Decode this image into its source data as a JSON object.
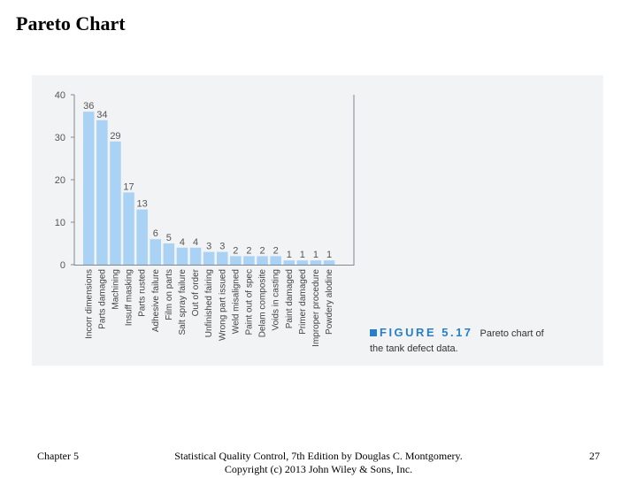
{
  "slide": {
    "title": "Pareto Chart",
    "footer_left": "Chapter 5",
    "footer_center_line1": "Statistical Quality Control, 7th Edition by Douglas C. Montgomery.",
    "footer_center_line2": "Copyright (c) 2013 John Wiley & Sons, Inc.",
    "page_number": "27"
  },
  "figure": {
    "label": "FIGURE 5.17",
    "caption_line1": "Pareto chart of",
    "caption_line2": "the tank defect data.",
    "accent_color": "#2a7fc4"
  },
  "chart_data": {
    "type": "bar",
    "categories": [
      "Incorr dimensions",
      "Parts damaged",
      "Machining",
      "Insuff masking",
      "Parts rusted",
      "Adhesive failure",
      "Film on parts",
      "Salt spray failure",
      "Out of order",
      "Unfinished fairing",
      "Wrong part issued",
      "Weld misaligned",
      "Paint out of spec",
      "Delam composite",
      "Voids in casting",
      "Paint damaged",
      "Primer damaged",
      "Improper procedure",
      "Powdery alodine"
    ],
    "values": [
      36,
      34,
      29,
      17,
      13,
      6,
      5,
      4,
      4,
      3,
      3,
      2,
      2,
      2,
      2,
      1,
      1,
      1,
      1
    ],
    "ylim": [
      0,
      40
    ],
    "yticks": [
      0,
      10,
      20,
      30,
      40
    ],
    "bar_color": "#a9d2f4",
    "axis_color": "#7f8a94",
    "grid": false
  }
}
